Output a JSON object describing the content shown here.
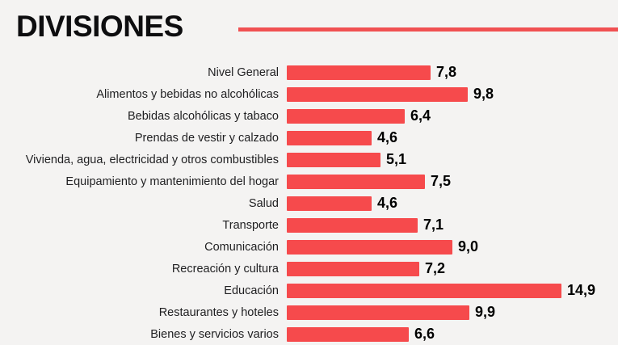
{
  "title": "DIVISIONES",
  "colors": {
    "background": "#f4f3f2",
    "bar": "#f64a4c",
    "accent_line": "#f05052",
    "title_text": "#0d0d0f",
    "label_text": "#1f1f21",
    "value_text": "#000000"
  },
  "chart_data": {
    "type": "bar",
    "orientation": "horizontal",
    "title": "DIVISIONES",
    "xlabel": "",
    "ylabel": "",
    "xlim": [
      0,
      15
    ],
    "grid": false,
    "legend_position": "none",
    "categories": [
      "Nivel General",
      "Alimentos y bebidas no alcohólicas",
      "Bebidas alcohólicas y tabaco",
      "Prendas de vestir y calzado",
      "Vivienda, agua, electricidad y otros combustibles",
      "Equipamiento y mantenimiento del hogar",
      "Salud",
      "Transporte",
      "Comunicación",
      "Recreación y cultura",
      "Educación",
      "Restaurantes y hoteles",
      "Bienes y servicios varios"
    ],
    "values": [
      7.8,
      9.8,
      6.4,
      4.6,
      5.1,
      7.5,
      4.6,
      7.1,
      9.0,
      7.2,
      14.9,
      9.9,
      6.6
    ],
    "value_labels": [
      "7,8",
      "9,8",
      "6,4",
      "4,6",
      "5,1",
      "7,5",
      "4,6",
      "7,1",
      "9,0",
      "7,2",
      "14,9",
      "9,9",
      "6,6"
    ]
  }
}
